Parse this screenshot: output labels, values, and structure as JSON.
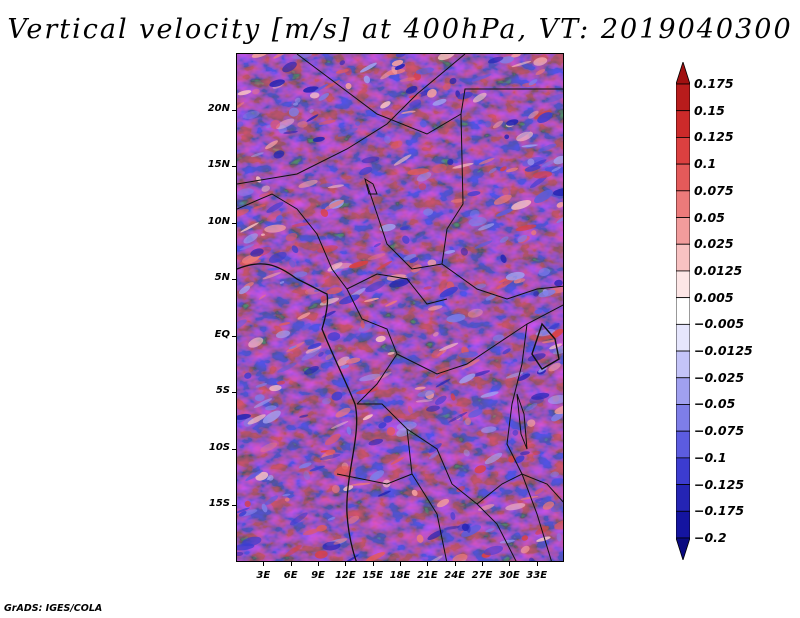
{
  "title": "Vertical velocity [m/s] at 400hPa, VT: 2019040300",
  "footer": "GrADS: IGES/COLA",
  "map": {
    "lon_range": [
      0,
      36
    ],
    "lat_range": [
      -20,
      25
    ],
    "lat_labels": [
      {
        "label": "20N",
        "lat": 20
      },
      {
        "label": "15N",
        "lat": 15
      },
      {
        "label": "10N",
        "lat": 10
      },
      {
        "label": "5N",
        "lat": 5
      },
      {
        "label": "EQ",
        "lat": 0
      },
      {
        "label": "5S",
        "lat": -5
      },
      {
        "label": "10S",
        "lat": -10
      },
      {
        "label": "15S",
        "lat": -15
      }
    ],
    "lon_labels": [
      {
        "label": "3E",
        "lon": 3
      },
      {
        "label": "6E",
        "lon": 6
      },
      {
        "label": "9E",
        "lon": 9
      },
      {
        "label": "12E",
        "lon": 12
      },
      {
        "label": "15E",
        "lon": 15
      },
      {
        "label": "18E",
        "lon": 18
      },
      {
        "label": "21E",
        "lon": 21
      },
      {
        "label": "24E",
        "lon": 24
      },
      {
        "label": "27E",
        "lon": 27
      },
      {
        "label": "30E",
        "lon": 30
      },
      {
        "label": "33E",
        "lon": 33
      }
    ]
  },
  "colorbar": {
    "labels": [
      "0.175",
      "0.15",
      "0.125",
      "0.1",
      "0.075",
      "0.05",
      "0.025",
      "0.0125",
      "0.005",
      "−0.005",
      "−0.0125",
      "−0.025",
      "−0.05",
      "−0.075",
      "−0.1",
      "−0.125",
      "−0.175",
      "−0.2"
    ],
    "colors": [
      "#a01010",
      "#b81c1c",
      "#cc2a2a",
      "#dc4040",
      "#e45a5a",
      "#ec7a7a",
      "#f29c9c",
      "#f8c2c2",
      "#fde6e6",
      "#ffffff",
      "#e6e6fd",
      "#c4c4f8",
      "#a0a0f0",
      "#7e7ee8",
      "#5c5ce0",
      "#3c3cd0",
      "#2424b4",
      "#1414a0",
      "#0a0a80"
    ]
  }
}
